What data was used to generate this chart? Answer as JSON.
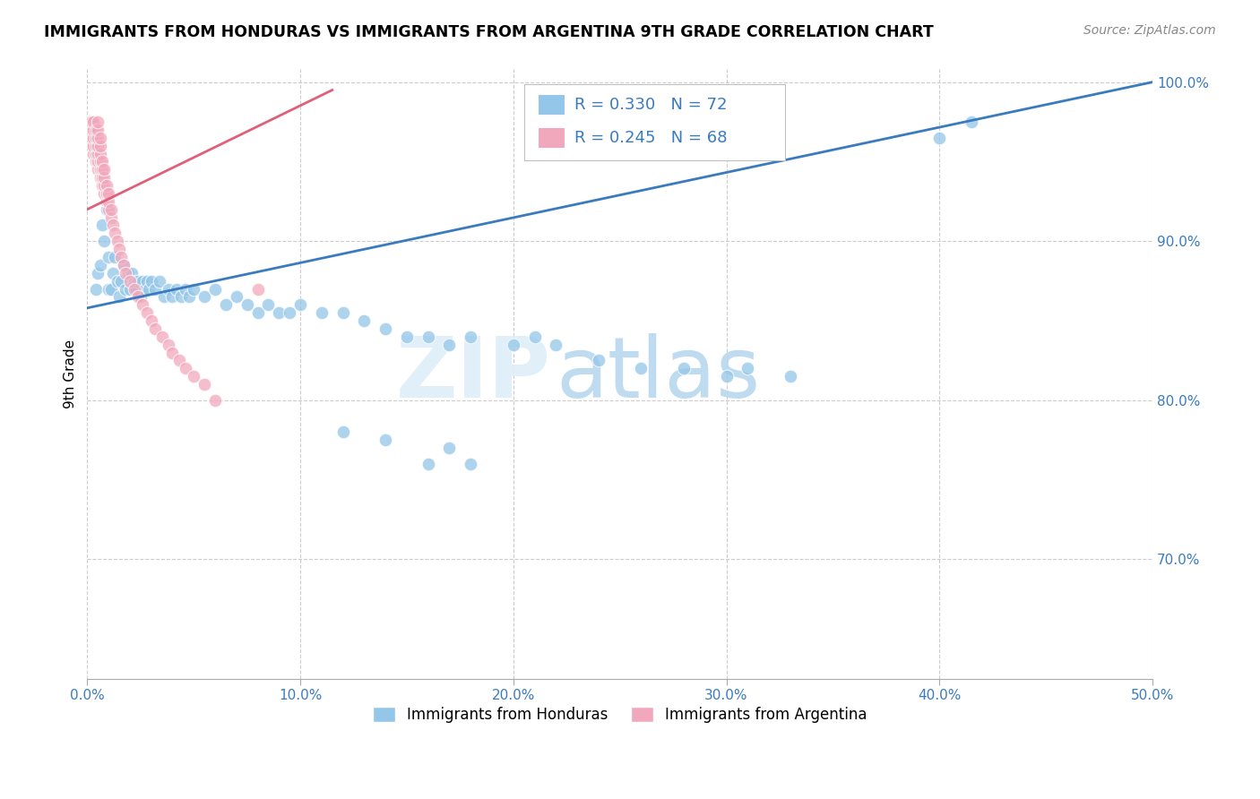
{
  "title": "IMMIGRANTS FROM HONDURAS VS IMMIGRANTS FROM ARGENTINA 9TH GRADE CORRELATION CHART",
  "source": "Source: ZipAtlas.com",
  "ylabel": "9th Grade",
  "xlim": [
    0.0,
    0.5
  ],
  "ylim": [
    0.625,
    1.008
  ],
  "xticks": [
    0.0,
    0.1,
    0.2,
    0.3,
    0.4,
    0.5
  ],
  "yticks": [
    0.7,
    0.8,
    0.9,
    1.0
  ],
  "R_honduras": 0.33,
  "N_honduras": 72,
  "R_argentina": 0.245,
  "N_argentina": 68,
  "color_honduras": "#93c6e8",
  "color_argentina": "#f2a8bc",
  "line_color_honduras": "#3a7bbf",
  "line_color_argentina": "#e0607a",
  "legend_label_honduras": "Immigrants from Honduras",
  "legend_label_argentina": "Immigrants from Argentina",
  "honduras_x": [
    0.004,
    0.005,
    0.006,
    0.007,
    0.008,
    0.009,
    0.01,
    0.01,
    0.011,
    0.012,
    0.013,
    0.014,
    0.015,
    0.016,
    0.017,
    0.018,
    0.019,
    0.02,
    0.021,
    0.022,
    0.023,
    0.024,
    0.025,
    0.026,
    0.027,
    0.028,
    0.029,
    0.03,
    0.032,
    0.034,
    0.036,
    0.038,
    0.04,
    0.042,
    0.044,
    0.046,
    0.048,
    0.05,
    0.055,
    0.06,
    0.065,
    0.07,
    0.075,
    0.08,
    0.085,
    0.09,
    0.095,
    0.1,
    0.11,
    0.12,
    0.13,
    0.14,
    0.15,
    0.16,
    0.17,
    0.18,
    0.2,
    0.21,
    0.22,
    0.24,
    0.26,
    0.28,
    0.3,
    0.31,
    0.33,
    0.12,
    0.14,
    0.16,
    0.17,
    0.18,
    0.4,
    0.415
  ],
  "honduras_y": [
    0.87,
    0.88,
    0.885,
    0.91,
    0.9,
    0.92,
    0.87,
    0.89,
    0.87,
    0.88,
    0.89,
    0.875,
    0.865,
    0.875,
    0.885,
    0.87,
    0.88,
    0.87,
    0.88,
    0.875,
    0.87,
    0.875,
    0.865,
    0.875,
    0.87,
    0.875,
    0.87,
    0.875,
    0.87,
    0.875,
    0.865,
    0.87,
    0.865,
    0.87,
    0.865,
    0.87,
    0.865,
    0.87,
    0.865,
    0.87,
    0.86,
    0.865,
    0.86,
    0.855,
    0.86,
    0.855,
    0.855,
    0.86,
    0.855,
    0.855,
    0.85,
    0.845,
    0.84,
    0.84,
    0.835,
    0.84,
    0.835,
    0.84,
    0.835,
    0.825,
    0.82,
    0.82,
    0.815,
    0.82,
    0.815,
    0.78,
    0.775,
    0.76,
    0.77,
    0.76,
    0.965,
    0.975
  ],
  "argentina_x": [
    0.001,
    0.001,
    0.002,
    0.002,
    0.002,
    0.002,
    0.003,
    0.003,
    0.003,
    0.003,
    0.003,
    0.004,
    0.004,
    0.004,
    0.004,
    0.004,
    0.005,
    0.005,
    0.005,
    0.005,
    0.005,
    0.005,
    0.005,
    0.006,
    0.006,
    0.006,
    0.006,
    0.006,
    0.006,
    0.007,
    0.007,
    0.007,
    0.007,
    0.008,
    0.008,
    0.008,
    0.008,
    0.009,
    0.009,
    0.009,
    0.01,
    0.01,
    0.01,
    0.011,
    0.011,
    0.012,
    0.013,
    0.014,
    0.015,
    0.016,
    0.017,
    0.018,
    0.02,
    0.022,
    0.024,
    0.026,
    0.028,
    0.03,
    0.032,
    0.035,
    0.038,
    0.04,
    0.043,
    0.046,
    0.05,
    0.055,
    0.06,
    0.08
  ],
  "argentina_y": [
    0.97,
    0.975,
    0.96,
    0.965,
    0.97,
    0.975,
    0.955,
    0.96,
    0.965,
    0.97,
    0.975,
    0.95,
    0.955,
    0.96,
    0.965,
    0.97,
    0.945,
    0.95,
    0.955,
    0.96,
    0.965,
    0.97,
    0.975,
    0.94,
    0.945,
    0.95,
    0.955,
    0.96,
    0.965,
    0.935,
    0.94,
    0.945,
    0.95,
    0.93,
    0.935,
    0.94,
    0.945,
    0.925,
    0.93,
    0.935,
    0.92,
    0.925,
    0.93,
    0.915,
    0.92,
    0.91,
    0.905,
    0.9,
    0.895,
    0.89,
    0.885,
    0.88,
    0.875,
    0.87,
    0.865,
    0.86,
    0.855,
    0.85,
    0.845,
    0.84,
    0.835,
    0.83,
    0.825,
    0.82,
    0.815,
    0.81,
    0.8,
    0.87
  ],
  "honduras_line_x": [
    0.0,
    0.5
  ],
  "honduras_line_y": [
    0.858,
    1.0
  ],
  "argentina_line_x": [
    0.0,
    0.115
  ],
  "argentina_line_y": [
    0.92,
    0.995
  ],
  "watermark_zip": "ZIP",
  "watermark_atlas": "atlas",
  "background_color": "#ffffff",
  "grid_color": "#cccccc"
}
